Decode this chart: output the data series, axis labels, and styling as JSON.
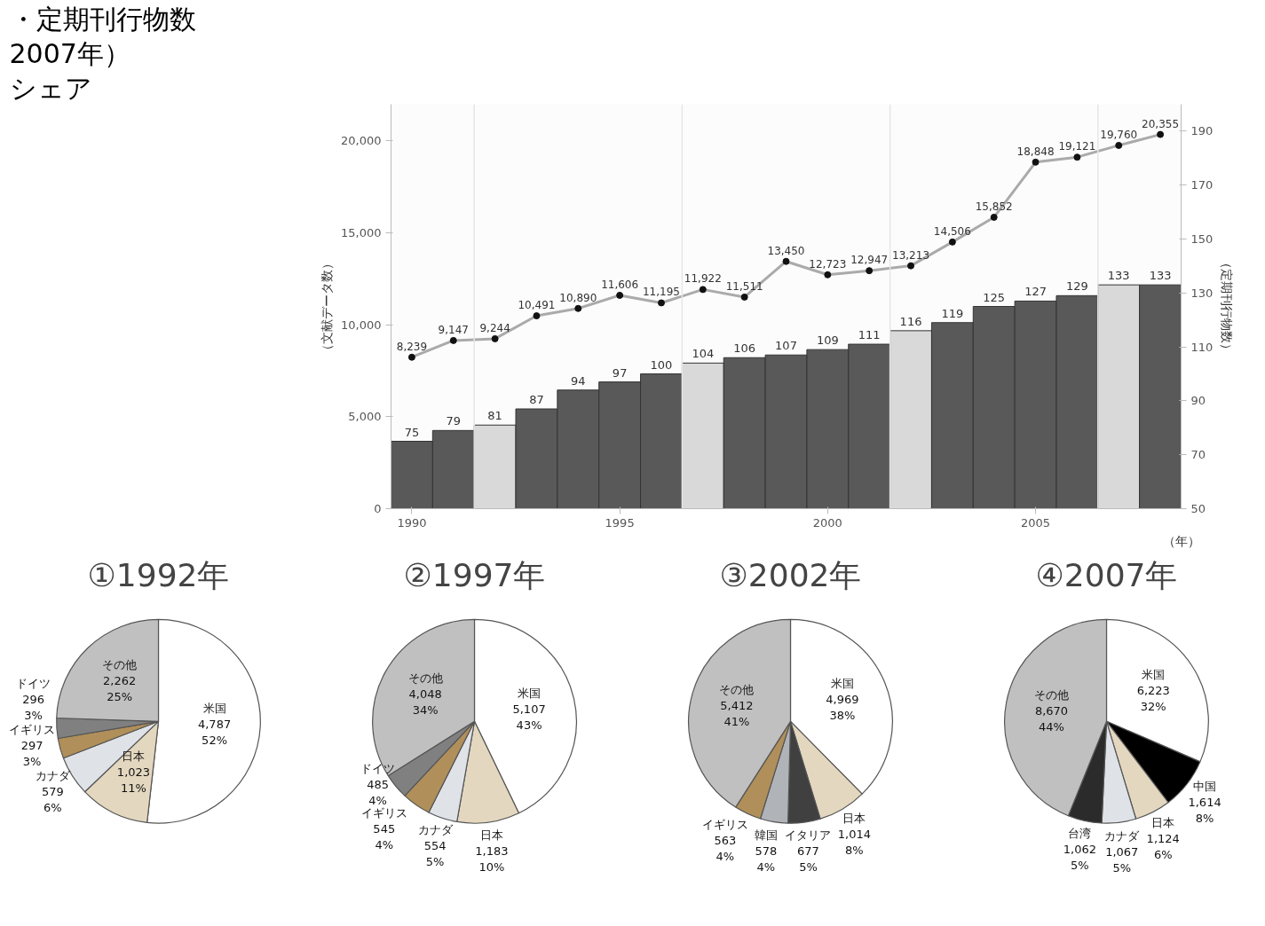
{
  "chart_data": [
    {
      "type": "bar",
      "title": "・定期刊行物数",
      "annotations": [
        "2007年）",
        "シェア"
      ],
      "xlabel": "（年）",
      "ylabel": "（文献データ数）",
      "y2label": "（定期刊行物数）",
      "x": [
        1990,
        1991,
        1992,
        1993,
        1994,
        1995,
        1996,
        1997,
        1998,
        1999,
        2000,
        2001,
        2002,
        2003,
        2004,
        2005,
        2006,
        2007,
        2008
      ],
      "xlim": [
        1989.5,
        2008.5
      ],
      "xticks": [
        1990,
        1995,
        2000,
        2005
      ],
      "ylim": [
        0,
        22000
      ],
      "yticks": [
        0,
        {
          "value": 5000,
          "label": "5,000"
        },
        {
          "value": 10000,
          "label": "10,000"
        },
        {
          "value": 15000,
          "label": "15,000"
        },
        {
          "value": 20000,
          "label": "20,000"
        }
      ],
      "y2lim": [
        50,
        200
      ],
      "y2ticks": [
        50,
        70,
        90,
        110,
        130,
        150,
        170,
        190
      ],
      "data_labels": true,
      "grid": false,
      "series": [
        {
          "type": "bar",
          "axis": "y2",
          "colors": [
            "#595959",
            "#595959",
            "#d9d9d9",
            "#595959",
            "#595959",
            "#595959",
            "#595959",
            "#d9d9d9",
            "#595959",
            "#595959",
            "#595959",
            "#595959",
            "#d9d9d9",
            "#595959",
            "#595959",
            "#595959",
            "#595959",
            "#d9d9d9",
            "#595959"
          ],
          "values": [
            75,
            79,
            81,
            87,
            94,
            97,
            100,
            104,
            106,
            107,
            109,
            111,
            116,
            119,
            125,
            127,
            129,
            133,
            133
          ]
        },
        {
          "type": "line",
          "color": "#aaaaaa",
          "marker": "circle",
          "values": [
            8239,
            9147,
            9244,
            10491,
            10890,
            11606,
            11195,
            11922,
            11511,
            13450,
            12723,
            12947,
            13213,
            14506,
            15852,
            18848,
            19121,
            19760,
            20355
          ],
          "value_labels": [
            "8,239",
            "9,147",
            "9,244",
            "10,491",
            "10,890",
            "11,606",
            "11,195",
            "11,922",
            "11,511",
            "13,450",
            "12,723",
            "12,947",
            "13,213",
            "14,506",
            "15,852",
            "18,848",
            "19,121",
            "19,760",
            "20,355"
          ]
        }
      ],
      "ref_lines": [
        {
          "axis": "x",
          "value": 1991.5,
          "color": "#e6e6e6"
        },
        {
          "axis": "x",
          "value": 1996.5,
          "color": "#e6e6e6"
        },
        {
          "axis": "x",
          "value": 2001.5,
          "color": "#e6e6e6"
        },
        {
          "axis": "x",
          "value": 2006.5,
          "color": "#e6e6e6"
        }
      ]
    },
    {
      "type": "pie",
      "title": "①1992年",
      "categories": [
        "米国",
        "日本",
        "カナダ",
        "イギリス",
        "ドイツ",
        "その他"
      ],
      "values": [
        4787,
        1023,
        579,
        297,
        296,
        2262
      ],
      "colors": [
        "#ffffff",
        "#e3d7bf",
        "#dfe3e8",
        "#b08f5a",
        "#808080",
        "#c0c0c0"
      ],
      "value_labels": [
        "4,787\n52%",
        "1,023\n11%",
        "579\n6%",
        "297\n3%",
        "296\n3%",
        "2,262\n25%"
      ]
    },
    {
      "type": "pie",
      "title": "②1997年",
      "categories": [
        "米国",
        "日本",
        "カナダ",
        "イギリス",
        "ドイツ",
        "その他"
      ],
      "values": [
        5107,
        1183,
        554,
        545,
        485,
        4048
      ],
      "colors": [
        "#ffffff",
        "#e3d7bf",
        "#dfe3e8",
        "#b08f5a",
        "#808080",
        "#c0c0c0"
      ],
      "value_labels": [
        "5,107\n43%",
        "1,183\n10%",
        "554\n5%",
        "545\n4%",
        "485\n4%",
        "4,048\n34%"
      ]
    },
    {
      "type": "pie",
      "title": "③2002年",
      "categories": [
        "米国",
        "日本",
        "イタリア",
        "韓国",
        "イギリス",
        "その他"
      ],
      "values": [
        4969,
        1014,
        677,
        578,
        563,
        5412
      ],
      "colors": [
        "#ffffff",
        "#e3d7bf",
        "#404040",
        "#b0b3b8",
        "#b08f5a",
        "#c0c0c0"
      ],
      "value_labels": [
        "4,969\n38%",
        "1,014\n8%",
        "677\n5%",
        "578\n4%",
        "563\n4%",
        "5,412\n41%"
      ]
    },
    {
      "type": "pie",
      "title": "④2007年",
      "categories": [
        "米国",
        "中国",
        "日本",
        "カナダ",
        "台湾",
        "その他"
      ],
      "values": [
        6223,
        1614,
        1124,
        1067,
        1062,
        8670
      ],
      "colors": [
        "#ffffff",
        "#000000",
        "#e3d7bf",
        "#dfe3e8",
        "#2b2b2b",
        "#c0c0c0"
      ],
      "value_labels": [
        "6,223\n32%",
        "1,614\n8%",
        "1,124\n6%",
        "1,067\n5%",
        "1,062\n5%",
        "8,670\n44%"
      ]
    }
  ]
}
